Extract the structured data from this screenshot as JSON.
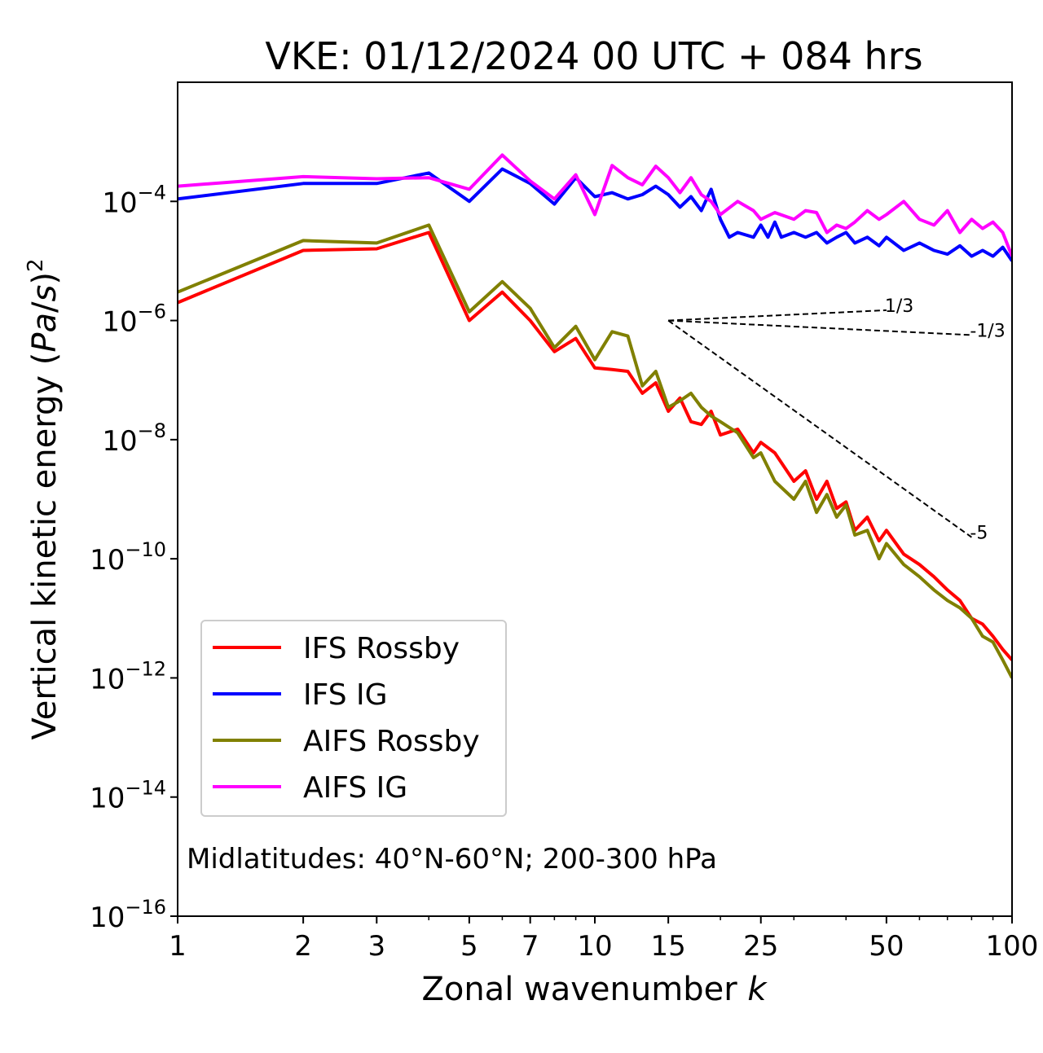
{
  "chart_data": {
    "type": "line",
    "title": "VKE: 01/12/2024 00 UTC + 084 hrs",
    "xlabel": "Zonal wavenumber k",
    "ylabel": "Vertical kinetic energy (Pa/s)^2",
    "x_scale": "log",
    "y_scale": "log",
    "xlim": [
      1,
      100
    ],
    "ylim": [
      1e-16,
      0.01
    ],
    "x_ticks": [
      1,
      2,
      3,
      5,
      7,
      10,
      15,
      25,
      50,
      100
    ],
    "x_tick_labels": [
      "1",
      "2",
      "3",
      "5",
      "7",
      "10",
      "15",
      "25",
      "50",
      "100"
    ],
    "y_ticks": [
      -16,
      -14,
      -12,
      -10,
      -8,
      -6,
      -4
    ],
    "y_tick_labels": [
      "10",
      "10",
      "10",
      "10",
      "10",
      "10",
      "10"
    ],
    "y_tick_exponents": [
      "−16",
      "−14",
      "−12",
      "−10",
      "−8",
      "−6",
      "−4"
    ],
    "grid": false,
    "legend_position": "lower-left",
    "annotation": "Midlatitudes: 40°N-60°N; 200-300 hPa",
    "reference_slopes": [
      {
        "label": "1/3",
        "x": [
          15,
          50
        ],
        "y": [
          1e-06,
          1.49e-06
        ]
      },
      {
        "label": "-1/3",
        "x": [
          15,
          80
        ],
        "y": [
          1e-06,
          5.7e-07
        ]
      },
      {
        "label": "-5",
        "x": [
          15,
          80
        ],
        "y": [
          1e-06,
          2.3e-10
        ]
      }
    ],
    "series": [
      {
        "name": "IFS Rossby",
        "color": "#ff0000",
        "points": [
          [
            1,
            2e-06
          ],
          [
            2,
            1.5e-05
          ],
          [
            3,
            1.6e-05
          ],
          [
            4,
            3e-05
          ],
          [
            5,
            1e-06
          ],
          [
            6,
            3e-06
          ],
          [
            7,
            1e-06
          ],
          [
            8,
            3e-07
          ],
          [
            9,
            5e-07
          ],
          [
            10,
            1.6e-07
          ],
          [
            11,
            1.5e-07
          ],
          [
            12,
            1.4e-07
          ],
          [
            13,
            6e-08
          ],
          [
            14,
            9e-08
          ],
          [
            15,
            3e-08
          ],
          [
            16,
            5e-08
          ],
          [
            17,
            2e-08
          ],
          [
            18,
            1.8e-08
          ],
          [
            19,
            3e-08
          ],
          [
            20,
            1.2e-08
          ],
          [
            22,
            1.5e-08
          ],
          [
            24,
            6e-09
          ],
          [
            25,
            9e-09
          ],
          [
            27,
            6e-09
          ],
          [
            30,
            2e-09
          ],
          [
            32,
            3e-09
          ],
          [
            34,
            1e-09
          ],
          [
            36,
            2e-09
          ],
          [
            38,
            7e-10
          ],
          [
            40,
            9e-10
          ],
          [
            42,
            3e-10
          ],
          [
            45,
            5e-10
          ],
          [
            48,
            2e-10
          ],
          [
            50,
            3e-10
          ],
          [
            55,
            1.2e-10
          ],
          [
            60,
            8e-11
          ],
          [
            65,
            5e-11
          ],
          [
            70,
            3e-11
          ],
          [
            75,
            2e-11
          ],
          [
            80,
            1e-11
          ],
          [
            85,
            8e-12
          ],
          [
            90,
            5e-12
          ],
          [
            95,
            3e-12
          ],
          [
            100,
            2e-12
          ]
        ]
      },
      {
        "name": "IFS IG",
        "color": "#0000ff",
        "points": [
          [
            1,
            0.00011
          ],
          [
            2,
            0.0002
          ],
          [
            3,
            0.0002
          ],
          [
            4,
            0.0003
          ],
          [
            5,
            0.0001
          ],
          [
            6,
            0.00035
          ],
          [
            7,
            0.0002
          ],
          [
            8,
            9e-05
          ],
          [
            9,
            0.00025
          ],
          [
            10,
            0.00012
          ],
          [
            11,
            0.00014
          ],
          [
            12,
            0.00011
          ],
          [
            13,
            0.00013
          ],
          [
            14,
            0.00018
          ],
          [
            15,
            0.00013
          ],
          [
            16,
            8e-05
          ],
          [
            17,
            0.00012
          ],
          [
            18,
            7e-05
          ],
          [
            19,
            0.00016
          ],
          [
            20,
            5e-05
          ],
          [
            21,
            2.5e-05
          ],
          [
            22,
            3e-05
          ],
          [
            24,
            2.5e-05
          ],
          [
            25,
            4e-05
          ],
          [
            26,
            2.5e-05
          ],
          [
            27,
            4.5e-05
          ],
          [
            28,
            2.5e-05
          ],
          [
            30,
            3e-05
          ],
          [
            32,
            2.5e-05
          ],
          [
            34,
            3e-05
          ],
          [
            36,
            2e-05
          ],
          [
            38,
            2.5e-05
          ],
          [
            40,
            3e-05
          ],
          [
            42,
            2e-05
          ],
          [
            45,
            2.5e-05
          ],
          [
            48,
            1.8e-05
          ],
          [
            50,
            2.5e-05
          ],
          [
            55,
            1.5e-05
          ],
          [
            60,
            2e-05
          ],
          [
            65,
            1.5e-05
          ],
          [
            70,
            1.3e-05
          ],
          [
            75,
            1.8e-05
          ],
          [
            80,
            1.2e-05
          ],
          [
            85,
            1.5e-05
          ],
          [
            90,
            1.2e-05
          ],
          [
            95,
            1.7e-05
          ],
          [
            100,
            1e-05
          ]
        ]
      },
      {
        "name": "AIFS Rossby",
        "color": "#808000",
        "points": [
          [
            1,
            3e-06
          ],
          [
            2,
            2.2e-05
          ],
          [
            3,
            2e-05
          ],
          [
            4,
            4e-05
          ],
          [
            5,
            1.4e-06
          ],
          [
            6,
            4.5e-06
          ],
          [
            7,
            1.6e-06
          ],
          [
            8,
            3.5e-07
          ],
          [
            9,
            8e-07
          ],
          [
            10,
            2.2e-07
          ],
          [
            11,
            6.5e-07
          ],
          [
            12,
            5.5e-07
          ],
          [
            13,
            8e-08
          ],
          [
            14,
            1.4e-07
          ],
          [
            15,
            3.5e-08
          ],
          [
            16,
            4.5e-08
          ],
          [
            17,
            6e-08
          ],
          [
            18,
            3.5e-08
          ],
          [
            19,
            2.5e-08
          ],
          [
            20,
            2e-08
          ],
          [
            22,
            1.3e-08
          ],
          [
            24,
            5e-09
          ],
          [
            25,
            6e-09
          ],
          [
            27,
            2e-09
          ],
          [
            30,
            1e-09
          ],
          [
            32,
            2e-09
          ],
          [
            34,
            6e-10
          ],
          [
            36,
            1.2e-09
          ],
          [
            38,
            5e-10
          ],
          [
            40,
            8e-10
          ],
          [
            42,
            2.5e-10
          ],
          [
            45,
            3e-10
          ],
          [
            48,
            1e-10
          ],
          [
            50,
            1.8e-10
          ],
          [
            55,
            8e-11
          ],
          [
            60,
            5e-11
          ],
          [
            65,
            3e-11
          ],
          [
            70,
            2e-11
          ],
          [
            75,
            1.5e-11
          ],
          [
            80,
            1e-11
          ],
          [
            85,
            5e-12
          ],
          [
            90,
            4e-12
          ],
          [
            95,
            2e-12
          ],
          [
            100,
            1e-12
          ]
        ]
      },
      {
        "name": "AIFS IG",
        "color": "#ff00ff",
        "points": [
          [
            1,
            0.00018
          ],
          [
            2,
            0.00026
          ],
          [
            3,
            0.00024
          ],
          [
            4,
            0.00025
          ],
          [
            5,
            0.00016
          ],
          [
            6,
            0.0006
          ],
          [
            7,
            0.00022
          ],
          [
            8,
            0.00011
          ],
          [
            9,
            0.00028
          ],
          [
            10,
            6e-05
          ],
          [
            11,
            0.0004
          ],
          [
            12,
            0.00025
          ],
          [
            13,
            0.00019
          ],
          [
            14,
            0.00039
          ],
          [
            15,
            0.00025
          ],
          [
            16,
            0.00014
          ],
          [
            17,
            0.00025
          ],
          [
            18,
            0.00013
          ],
          [
            19,
            0.0001
          ],
          [
            20,
            6e-05
          ],
          [
            22,
            0.0001
          ],
          [
            24,
            7e-05
          ],
          [
            25,
            5e-05
          ],
          [
            27,
            6.5e-05
          ],
          [
            30,
            5e-05
          ],
          [
            32,
            7e-05
          ],
          [
            34,
            6.5e-05
          ],
          [
            36,
            3e-05
          ],
          [
            38,
            4e-05
          ],
          [
            40,
            3.5e-05
          ],
          [
            42,
            4.5e-05
          ],
          [
            45,
            7e-05
          ],
          [
            48,
            5e-05
          ],
          [
            50,
            6e-05
          ],
          [
            55,
            0.0001
          ],
          [
            60,
            5e-05
          ],
          [
            65,
            4e-05
          ],
          [
            70,
            7e-05
          ],
          [
            75,
            3e-05
          ],
          [
            80,
            5e-05
          ],
          [
            85,
            3.5e-05
          ],
          [
            90,
            4.5e-05
          ],
          [
            95,
            3e-05
          ],
          [
            100,
            1.2e-05
          ]
        ]
      }
    ]
  }
}
